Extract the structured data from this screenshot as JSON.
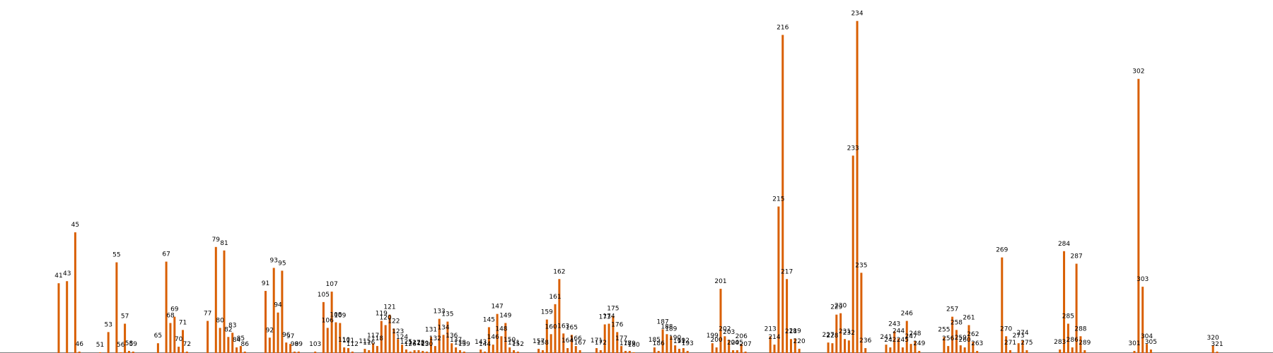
{
  "chart_data": {
    "type": "bar",
    "x": [
      41,
      43,
      45,
      46,
      51,
      53,
      55,
      56,
      57,
      58,
      59,
      65,
      67,
      68,
      69,
      70,
      71,
      72,
      77,
      79,
      80,
      81,
      82,
      83,
      84,
      85,
      86,
      91,
      92,
      93,
      94,
      95,
      96,
      97,
      98,
      99,
      103,
      105,
      106,
      107,
      108,
      109,
      110,
      111,
      112,
      115,
      116,
      117,
      118,
      119,
      120,
      121,
      122,
      123,
      124,
      125,
      126,
      127,
      128,
      129,
      130,
      131,
      132,
      133,
      134,
      135,
      136,
      137,
      138,
      139,
      143,
      144,
      145,
      146,
      147,
      148,
      149,
      150,
      151,
      152,
      157,
      158,
      159,
      160,
      161,
      162,
      163,
      164,
      165,
      166,
      167,
      171,
      172,
      173,
      174,
      175,
      176,
      177,
      178,
      179,
      180,
      185,
      186,
      187,
      188,
      189,
      190,
      191,
      192,
      193,
      199,
      200,
      201,
      202,
      203,
      204,
      205,
      206,
      207,
      213,
      214,
      215,
      216,
      217,
      218,
      219,
      220,
      227,
      228,
      229,
      230,
      231,
      232,
      233,
      234,
      235,
      236,
      241,
      242,
      243,
      244,
      245,
      246,
      247,
      248,
      249,
      255,
      256,
      257,
      258,
      259,
      260,
      261,
      262,
      263,
      269,
      270,
      271,
      273,
      274,
      275,
      283,
      284,
      285,
      286,
      287,
      288,
      289,
      301,
      302,
      303,
      304,
      305,
      320,
      321
    ],
    "values": [
      100,
      103,
      173,
      2,
      1,
      30,
      130,
      1,
      42,
      3,
      2,
      14,
      131,
      43,
      52,
      9,
      33,
      2,
      46,
      152,
      36,
      147,
      23,
      29,
      8,
      10,
      2,
      89,
      22,
      122,
      58,
      118,
      15,
      13,
      2,
      2,
      2,
      73,
      36,
      88,
      44,
      43,
      8,
      7,
      2,
      6,
      4,
      14,
      10,
      46,
      40,
      55,
      35,
      20,
      12,
      5,
      2,
      4,
      4,
      3,
      2,
      23,
      10,
      49,
      26,
      45,
      14,
      8,
      4,
      2,
      5,
      2,
      37,
      12,
      56,
      24,
      43,
      8,
      4,
      2,
      6,
      4,
      48,
      27,
      70,
      106,
      28,
      7,
      26,
      10,
      4,
      7,
      4,
      41,
      42,
      53,
      30,
      10,
      3,
      3,
      1,
      8,
      3,
      34,
      27,
      24,
      11,
      6,
      7,
      3,
      14,
      8,
      92,
      24,
      19,
      4,
      4,
      13,
      2,
      24,
      12,
      210,
      456,
      106,
      20,
      21,
      6,
      15,
      14,
      55,
      57,
      20,
      18,
      283,
      476,
      115,
      7,
      12,
      8,
      31,
      21,
      8,
      46,
      13,
      17,
      3,
      23,
      10,
      52,
      33,
      11,
      8,
      40,
      16,
      3,
      137,
      24,
      4,
      14,
      18,
      4,
      5,
      146,
      42,
      8,
      128,
      24,
      4,
      3,
      393,
      95,
      13,
      5,
      11,
      2
    ],
    "bar_color": "#d95f02",
    "ylim": [
      0,
      500
    ]
  }
}
